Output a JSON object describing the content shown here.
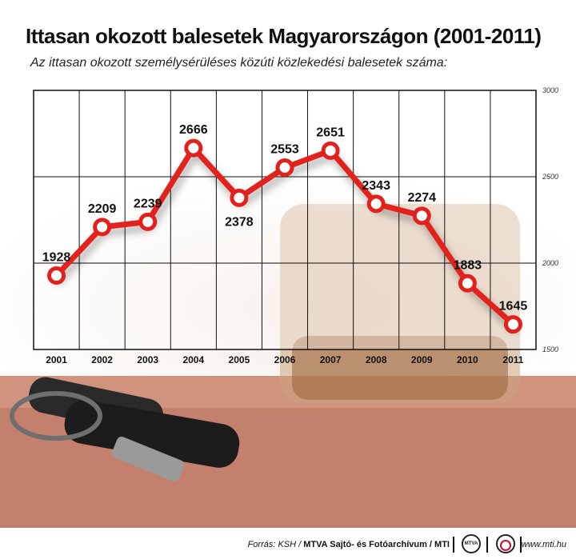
{
  "header": {
    "title": "Ittasan okozott balesetek Magyarországon (2001-2011)",
    "subtitle": "Az ittasan okozott személysérüléses közúti közlekedési balesetek száma:"
  },
  "chart_data": {
    "type": "line",
    "title": "Ittasan okozott balesetek Magyarországon (2001-2011)",
    "subtitle": "Az ittasan okozott személysérüléses közúti közlekedési balesetek száma:",
    "categories": [
      "2001",
      "2002",
      "2003",
      "2004",
      "2005",
      "2006",
      "2007",
      "2008",
      "2009",
      "2010",
      "2011"
    ],
    "series": [
      {
        "values": [
          1928,
          2209,
          2239,
          2666,
          2378,
          2553,
          2651,
          2343,
          2274,
          1883,
          1645
        ]
      }
    ],
    "data_labels": [
      "1928",
      "2209",
      "2239",
      "2666",
      "2378",
      "2553",
      "2651",
      "2343",
      "2274",
      "1883",
      "1645"
    ],
    "y_ticks": [
      "1500",
      "2000",
      "2500",
      "3000"
    ],
    "ylim": [
      1500,
      3000
    ],
    "y_axis_side": "right",
    "grid": true,
    "line_color": "#e2211c",
    "marker_fill": "#ffffff"
  },
  "footer": {
    "source_prefix": "Forrás: KSH / ",
    "source_bold": "MTVA Sajtó- és Fotóarchívum / MTI",
    "logo1_text": "MTVA",
    "website": "www.mti.hu"
  }
}
